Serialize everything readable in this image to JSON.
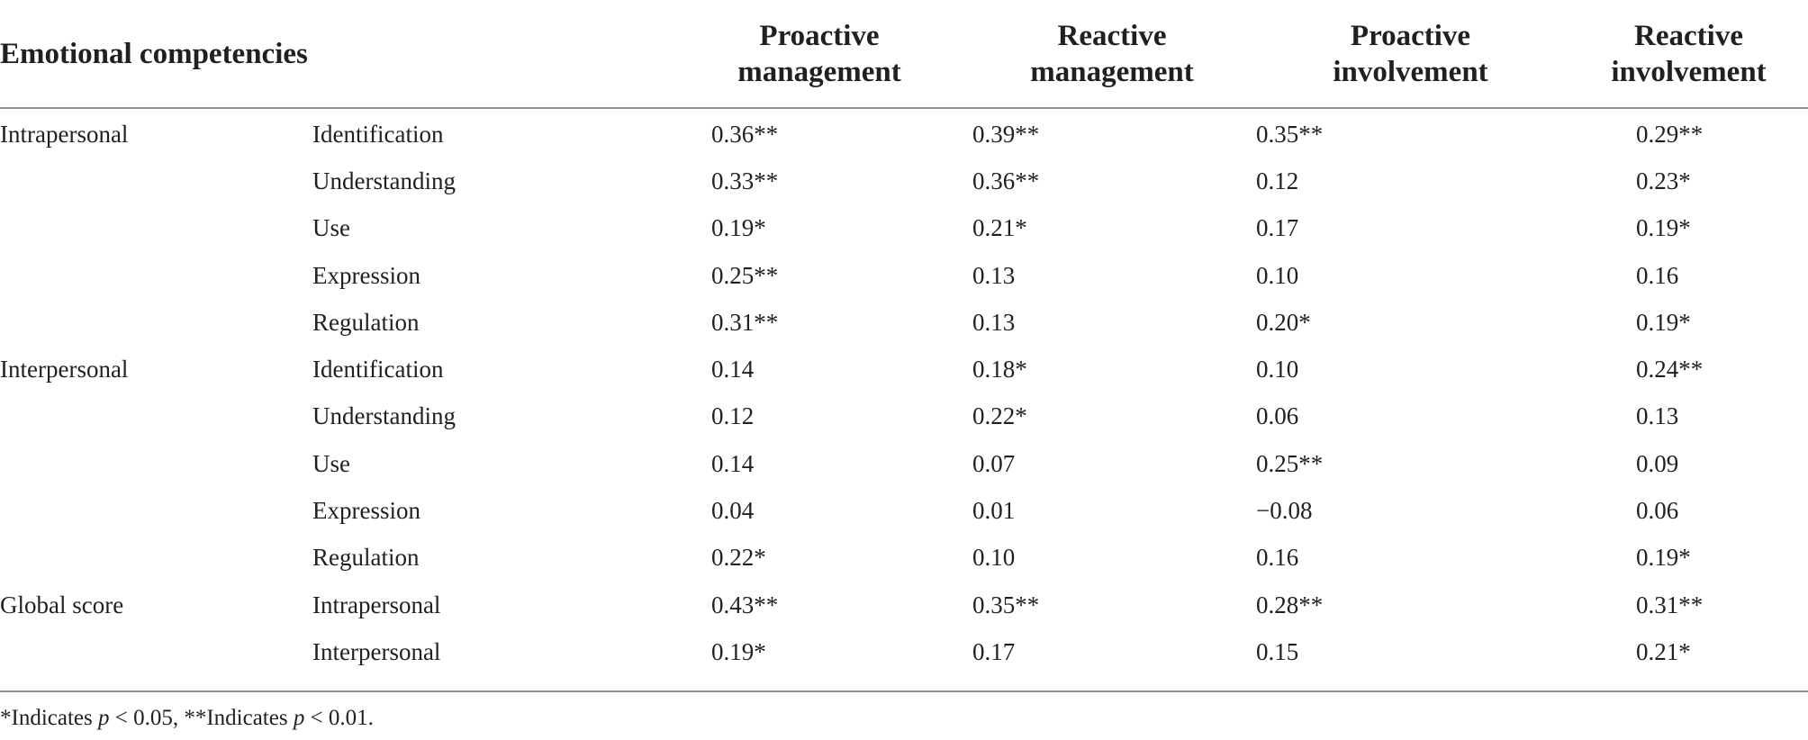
{
  "table": {
    "header": {
      "first": "Emotional competencies",
      "columns": [
        {
          "line1": "Proactive",
          "line2": "management"
        },
        {
          "line1": "Reactive",
          "line2": "management"
        },
        {
          "line1": "Proactive",
          "line2": "involvement"
        },
        {
          "line1": "Reactive",
          "line2": "involvement"
        }
      ]
    },
    "rows": [
      {
        "category": "Intrapersonal",
        "sub": "Identification",
        "values": [
          "0.36**",
          "0.39**",
          "0.35**",
          "0.29**"
        ]
      },
      {
        "category": "",
        "sub": "Understanding",
        "values": [
          "0.33**",
          "0.36**",
          "0.12",
          "0.23*"
        ]
      },
      {
        "category": "",
        "sub": "Use",
        "values": [
          "0.19*",
          "0.21*",
          "0.17",
          "0.19*"
        ]
      },
      {
        "category": "",
        "sub": "Expression",
        "values": [
          "0.25**",
          "0.13",
          "0.10",
          "0.16"
        ]
      },
      {
        "category": "",
        "sub": "Regulation",
        "values": [
          "0.31**",
          "0.13",
          "0.20*",
          "0.19*"
        ]
      },
      {
        "category": "Interpersonal",
        "sub": "Identification",
        "values": [
          "0.14",
          "0.18*",
          "0.10",
          "0.24**"
        ]
      },
      {
        "category": "",
        "sub": "Understanding",
        "values": [
          "0.12",
          "0.22*",
          "0.06",
          "0.13"
        ]
      },
      {
        "category": "",
        "sub": "Use",
        "values": [
          "0.14",
          "0.07",
          "0.25**",
          "0.09"
        ]
      },
      {
        "category": "",
        "sub": "Expression",
        "values": [
          "0.04",
          "0.01",
          "−0.08",
          "0.06"
        ]
      },
      {
        "category": "",
        "sub": "Regulation",
        "values": [
          "0.22*",
          "0.10",
          "0.16",
          "0.19*"
        ]
      },
      {
        "category": "Global score",
        "sub": "Intrapersonal",
        "values": [
          "0.43**",
          "0.35**",
          "0.28**",
          "0.31**"
        ]
      },
      {
        "category": "",
        "sub": "Interpersonal",
        "values": [
          "0.19*",
          "0.17",
          "0.15",
          "0.21*"
        ]
      }
    ]
  },
  "footnote": {
    "part1": "*Indicates ",
    "p1": "p",
    "part2": " < 0.05, **Indicates ",
    "p2": "p",
    "part3": " < 0.01."
  },
  "colors": {
    "text": "#231f20",
    "rule": "#8c8c8c",
    "background": "#ffffff"
  }
}
